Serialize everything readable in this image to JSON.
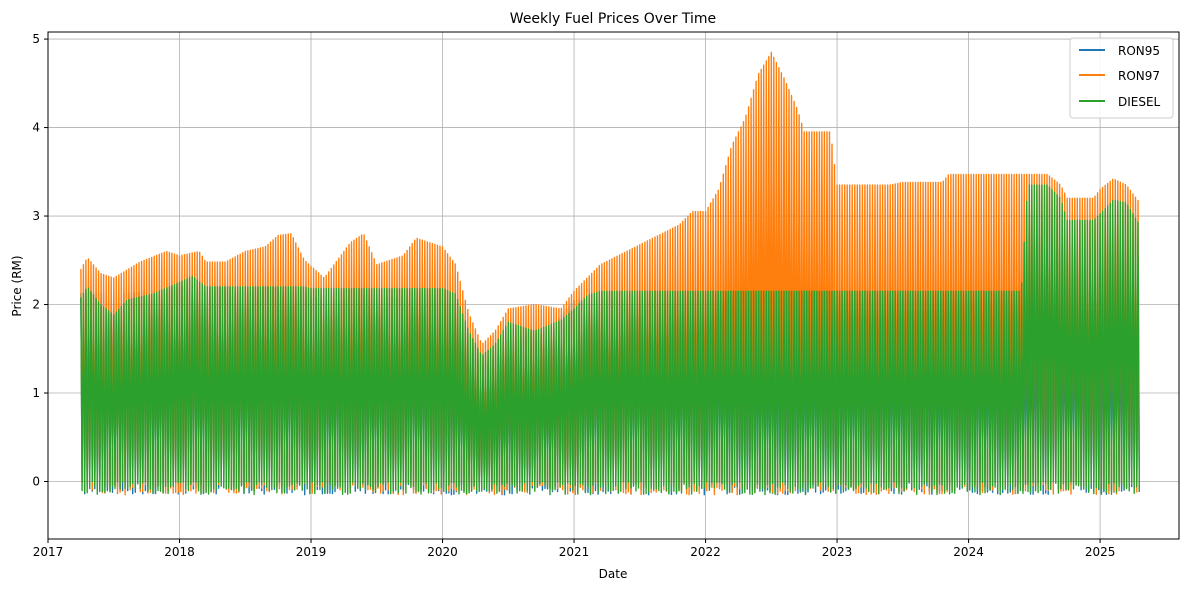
{
  "chart_data": {
    "type": "line",
    "title": "Weekly Fuel Prices Over Time",
    "xlabel": "Date",
    "ylabel": "Price (RM)",
    "xlim": [
      2017.0,
      2025.6
    ],
    "ylim": [
      -0.65,
      5.08
    ],
    "x_ticks": [
      2017,
      2018,
      2019,
      2020,
      2021,
      2022,
      2023,
      2024,
      2025
    ],
    "x_tick_labels": [
      "2017",
      "2018",
      "2019",
      "2020",
      "2021",
      "2022",
      "2023",
      "2024",
      "2025"
    ],
    "y_ticks": [
      0,
      1,
      2,
      3,
      4,
      5
    ],
    "y_tick_labels": [
      "0",
      "1",
      "2",
      "3",
      "4",
      "5"
    ],
    "grid": true,
    "legend_position": "top-right",
    "series": [
      {
        "name": "RON95",
        "color": "#1f77b4",
        "envelope": [
          [
            2017.25,
            2.13
          ],
          [
            2017.5,
            2.12
          ],
          [
            2017.8,
            2.15
          ],
          [
            2018.0,
            2.2
          ],
          [
            2018.4,
            2.2
          ],
          [
            2018.9,
            2.2
          ],
          [
            2019.0,
            2.08
          ],
          [
            2019.1,
            2.08
          ],
          [
            2020.0,
            2.08
          ],
          [
            2020.2,
            1.65
          ],
          [
            2020.3,
            1.25
          ],
          [
            2020.5,
            1.6
          ],
          [
            2020.8,
            1.7
          ],
          [
            2021.0,
            2.05
          ],
          [
            2021.5,
            2.05
          ],
          [
            2022.0,
            2.05
          ],
          [
            2023.0,
            2.05
          ],
          [
            2024.0,
            2.05
          ],
          [
            2024.5,
            2.05
          ],
          [
            2024.7,
            2.05
          ],
          [
            2025.3,
            2.05
          ]
        ]
      },
      {
        "name": "RON97",
        "color": "#ff7f0e",
        "envelope": [
          [
            2017.25,
            2.4
          ],
          [
            2017.3,
            2.53
          ],
          [
            2017.4,
            2.35
          ],
          [
            2017.5,
            2.3
          ],
          [
            2017.7,
            2.48
          ],
          [
            2017.9,
            2.6
          ],
          [
            2018.0,
            2.55
          ],
          [
            2018.15,
            2.6
          ],
          [
            2018.2,
            2.48
          ],
          [
            2018.35,
            2.48
          ],
          [
            2018.5,
            2.6
          ],
          [
            2018.65,
            2.65
          ],
          [
            2018.75,
            2.78
          ],
          [
            2018.85,
            2.8
          ],
          [
            2018.95,
            2.5
          ],
          [
            2019.1,
            2.3
          ],
          [
            2019.3,
            2.7
          ],
          [
            2019.4,
            2.8
          ],
          [
            2019.5,
            2.45
          ],
          [
            2019.7,
            2.55
          ],
          [
            2019.8,
            2.75
          ],
          [
            2020.0,
            2.65
          ],
          [
            2020.1,
            2.45
          ],
          [
            2020.2,
            1.9
          ],
          [
            2020.3,
            1.55
          ],
          [
            2020.4,
            1.7
          ],
          [
            2020.5,
            1.95
          ],
          [
            2020.7,
            2.0
          ],
          [
            2020.9,
            1.95
          ],
          [
            2021.0,
            2.15
          ],
          [
            2021.2,
            2.45
          ],
          [
            2021.4,
            2.6
          ],
          [
            2021.6,
            2.75
          ],
          [
            2021.8,
            2.9
          ],
          [
            2021.9,
            3.05
          ],
          [
            2022.0,
            3.05
          ],
          [
            2022.1,
            3.3
          ],
          [
            2022.2,
            3.8
          ],
          [
            2022.3,
            4.1
          ],
          [
            2022.4,
            4.6
          ],
          [
            2022.5,
            4.85
          ],
          [
            2022.6,
            4.55
          ],
          [
            2022.7,
            4.2
          ],
          [
            2022.75,
            3.95
          ],
          [
            2022.95,
            3.95
          ],
          [
            2023.0,
            3.35
          ],
          [
            2023.4,
            3.35
          ],
          [
            2023.5,
            3.38
          ],
          [
            2023.8,
            3.38
          ],
          [
            2023.85,
            3.47
          ],
          [
            2024.2,
            3.47
          ],
          [
            2024.6,
            3.47
          ],
          [
            2024.7,
            3.35
          ],
          [
            2024.75,
            3.2
          ],
          [
            2024.95,
            3.2
          ],
          [
            2025.0,
            3.3
          ],
          [
            2025.1,
            3.42
          ],
          [
            2025.2,
            3.35
          ],
          [
            2025.3,
            3.15
          ]
        ]
      },
      {
        "name": "DIESEL",
        "color": "#2ca02c",
        "envelope": [
          [
            2017.25,
            2.08
          ],
          [
            2017.3,
            2.2
          ],
          [
            2017.4,
            2.0
          ],
          [
            2017.5,
            1.88
          ],
          [
            2017.6,
            2.05
          ],
          [
            2017.8,
            2.12
          ],
          [
            2018.0,
            2.25
          ],
          [
            2018.1,
            2.32
          ],
          [
            2018.2,
            2.2
          ],
          [
            2018.35,
            2.2
          ],
          [
            2018.95,
            2.2
          ],
          [
            2019.0,
            2.18
          ],
          [
            2020.0,
            2.18
          ],
          [
            2020.1,
            2.12
          ],
          [
            2020.2,
            1.7
          ],
          [
            2020.3,
            1.42
          ],
          [
            2020.4,
            1.55
          ],
          [
            2020.5,
            1.8
          ],
          [
            2020.7,
            1.7
          ],
          [
            2020.9,
            1.82
          ],
          [
            2021.0,
            1.95
          ],
          [
            2021.1,
            2.1
          ],
          [
            2021.2,
            2.15
          ],
          [
            2024.4,
            2.15
          ],
          [
            2024.45,
            3.35
          ],
          [
            2024.6,
            3.35
          ],
          [
            2024.7,
            3.2
          ],
          [
            2024.75,
            2.95
          ],
          [
            2024.95,
            2.95
          ],
          [
            2025.05,
            3.1
          ],
          [
            2025.1,
            3.18
          ],
          [
            2025.2,
            3.15
          ],
          [
            2025.3,
            2.9
          ]
        ]
      }
    ],
    "data_start": 2017.25,
    "data_end": 2025.3
  }
}
